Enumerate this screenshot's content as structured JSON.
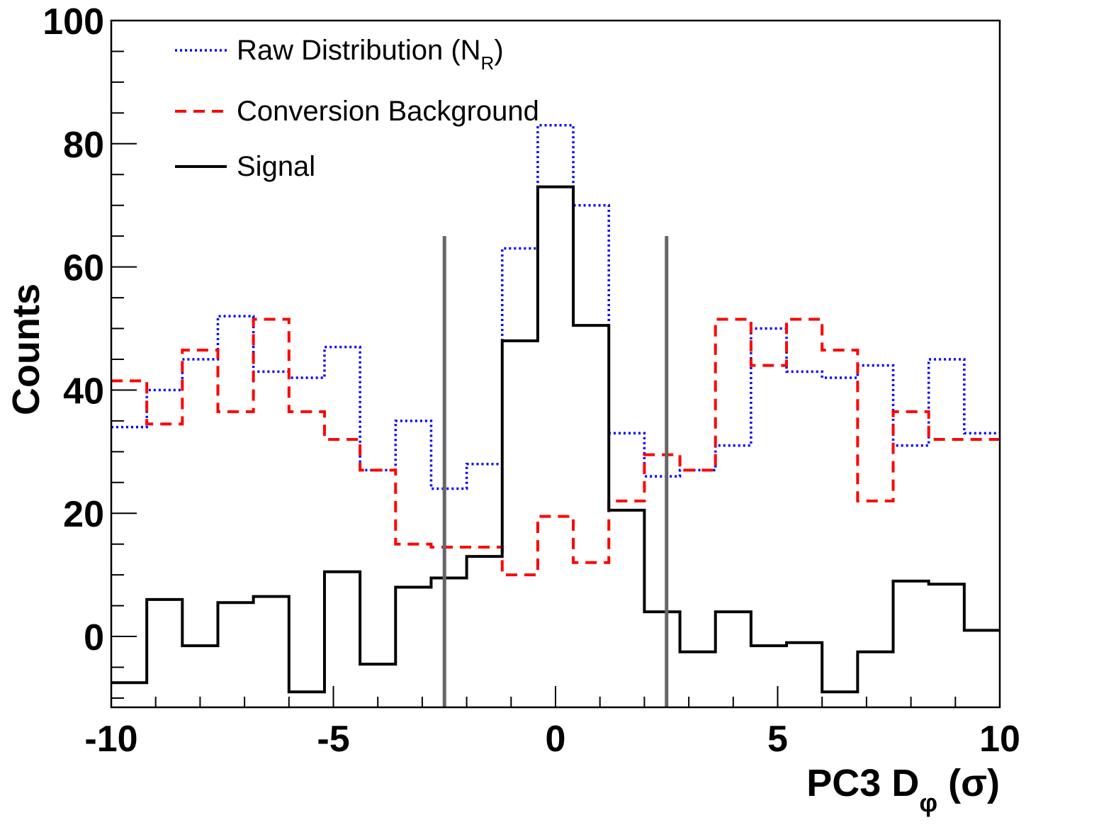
{
  "chart_data": {
    "type": "line",
    "title": "",
    "xlabel": {
      "main": "PC3 D",
      "sub": "φ",
      "suffix": " (σ)"
    },
    "ylabel": "Counts",
    "xlim": [
      -10,
      10
    ],
    "ylim": [
      -11.5,
      100
    ],
    "x_ticks": [
      -10,
      -5,
      0,
      5,
      10
    ],
    "x_tick_labels": [
      "-10",
      "-5",
      "0",
      "5",
      "10"
    ],
    "y_ticks": [
      0,
      20,
      40,
      60,
      80,
      100
    ],
    "y_tick_labels": [
      "0",
      "20",
      "40",
      "60",
      "80",
      "100"
    ],
    "grid": false,
    "legend_position": "top-left",
    "bin_edges": [
      -10,
      -9.2,
      -8.4,
      -7.6,
      -6.8,
      -6.0,
      -5.2,
      -4.4,
      -3.6,
      -2.8,
      -2.0,
      -1.2,
      -0.4,
      0.4,
      1.2,
      2.0,
      2.8,
      3.6,
      4.4,
      5.2,
      6.0,
      6.8,
      7.6,
      8.4,
      9.2,
      10
    ],
    "series": [
      {
        "name": "Raw Distribution (N_R)",
        "legend_main": "Raw Distribution (N",
        "legend_sub": "R",
        "legend_suffix": ")",
        "color": "#0000ff",
        "style": "dotted",
        "values": [
          34,
          40,
          45,
          52,
          43,
          42,
          47,
          27,
          35,
          24,
          28,
          63,
          83,
          70,
          33,
          26,
          27,
          31,
          50,
          43,
          42,
          44,
          31,
          45,
          33
        ]
      },
      {
        "name": "Conversion Background",
        "legend_main": "Conversion Background",
        "legend_sub": "",
        "legend_suffix": "",
        "color": "#ff0000",
        "style": "dashed",
        "values": [
          41.5,
          34.5,
          46.5,
          36.5,
          51.5,
          36.5,
          32,
          27,
          15,
          14.5,
          14.5,
          10,
          19.5,
          12,
          22,
          29.5,
          27,
          51.5,
          44,
          51.5,
          46.5,
          22,
          36.5,
          32,
          32
        ]
      },
      {
        "name": "Signal",
        "legend_main": "Signal",
        "legend_sub": "",
        "legend_suffix": "",
        "color": "#000000",
        "style": "solid",
        "values": [
          -7.5,
          6,
          -1.5,
          5.5,
          6.5,
          -9,
          10.5,
          -4.5,
          8,
          9.5,
          13,
          48,
          73,
          50.5,
          20.5,
          4,
          -2.5,
          4,
          -1.5,
          -1,
          -9,
          -2.5,
          9,
          8.5,
          1
        ]
      }
    ],
    "cut_lines": {
      "x": [
        -2.5,
        2.5
      ],
      "y_top": 65,
      "color": "#666666"
    }
  }
}
